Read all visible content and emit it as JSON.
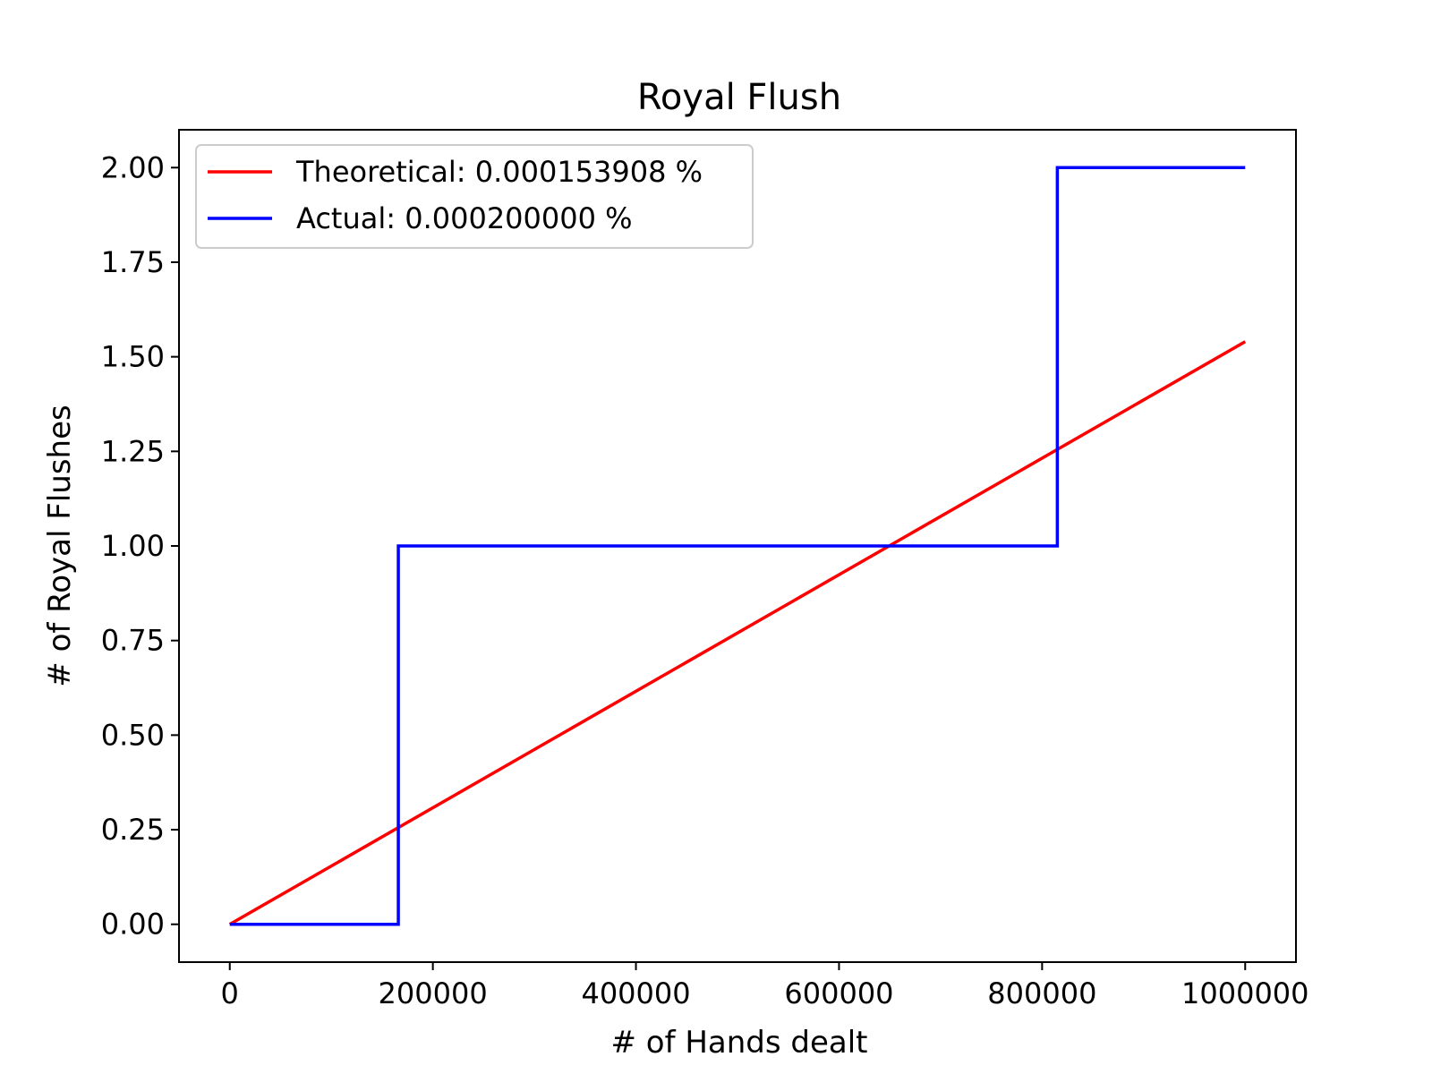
{
  "chart_data": {
    "type": "line",
    "title": "Royal Flush",
    "xlabel": "# of Hands dealt",
    "ylabel": "# of Royal Flushes",
    "xlim": [
      -50000,
      1050000
    ],
    "ylim": [
      -0.1,
      2.1
    ],
    "xticks": [
      0,
      200000,
      400000,
      600000,
      800000,
      1000000
    ],
    "xtick_labels": [
      "0",
      "200000",
      "400000",
      "600000",
      "800000",
      "1000000"
    ],
    "yticks": [
      0.0,
      0.25,
      0.5,
      0.75,
      1.0,
      1.25,
      1.5,
      1.75,
      2.0
    ],
    "ytick_labels": [
      "0.00",
      "0.25",
      "0.50",
      "0.75",
      "1.00",
      "1.25",
      "1.50",
      "1.75",
      "2.00"
    ],
    "grid": false,
    "legend_position": "top-left",
    "series": [
      {
        "name": "Theoretical: 0.000153908 %",
        "color": "#ff0000",
        "style": "linear",
        "points": [
          [
            0,
            0.0
          ],
          [
            1000000,
            1.54
          ]
        ]
      },
      {
        "name": "Actual: 0.000200000 %",
        "color": "#0000ff",
        "style": "step",
        "points": [
          [
            0,
            0
          ],
          [
            166000,
            0
          ],
          [
            166000,
            1
          ],
          [
            815000,
            1
          ],
          [
            815000,
            2
          ],
          [
            1000000,
            2
          ]
        ]
      }
    ]
  }
}
